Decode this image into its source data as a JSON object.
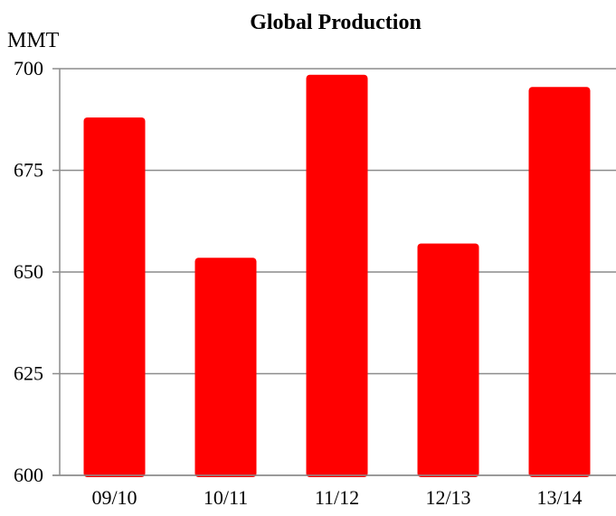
{
  "chart_data": {
    "type": "bar",
    "title": "Global Production",
    "ylabel": "MMT",
    "xlabel": "",
    "categories": [
      "09/10",
      "10/11",
      "11/12",
      "12/13",
      "13/14"
    ],
    "values": [
      688,
      653.5,
      698.5,
      657,
      695.5
    ],
    "ylim": [
      600,
      700
    ],
    "yticks": [
      600,
      625,
      650,
      675,
      700
    ],
    "bar_color": "#ff0000",
    "grid": true,
    "legend": "none"
  }
}
